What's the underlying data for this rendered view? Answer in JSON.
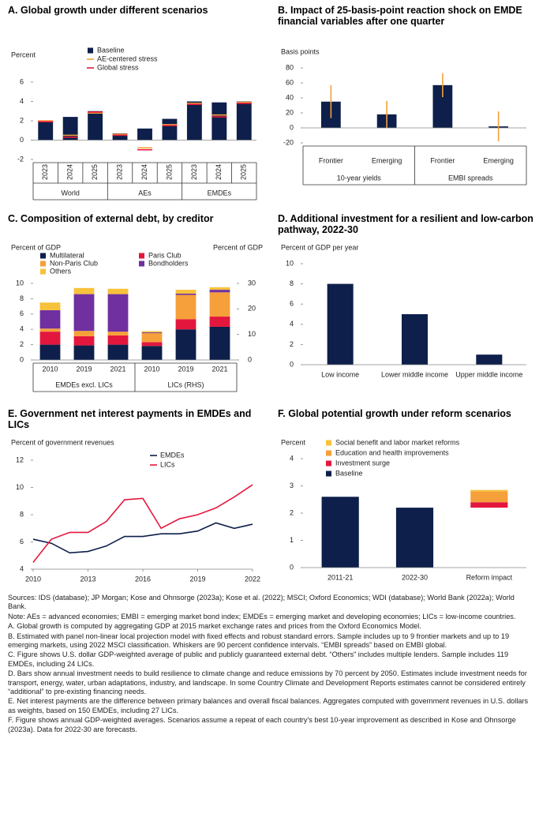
{
  "chart_data": [
    {
      "type": "bar",
      "title": "A. Global growth under different scenarios",
      "y_label": "Percent",
      "groups": [
        {
          "name": "World",
          "categories": [
            "2023",
            "2024",
            "2025"
          ]
        },
        {
          "name": "AEs",
          "categories": [
            "2023",
            "2024",
            "2025"
          ]
        },
        {
          "name": "EMDEs",
          "categories": [
            "2023",
            "2024",
            "2025"
          ]
        }
      ],
      "series": [
        {
          "name": "Baseline",
          "mark": "bar",
          "color": "#0d1f4a",
          "values": [
            2.0,
            2.4,
            3.0,
            0.7,
            1.2,
            2.2,
            4.0,
            3.9,
            4.0
          ]
        },
        {
          "name": "AE-centered stress",
          "mark": "dash",
          "color": "#f5a03a",
          "values": [
            2.0,
            0.5,
            2.8,
            0.6,
            -0.8,
            1.6,
            3.8,
            2.6,
            3.9
          ]
        },
        {
          "name": "Global stress",
          "mark": "dash",
          "color": "#e3173e",
          "values": [
            1.9,
            0.3,
            2.9,
            0.5,
            -1.0,
            1.5,
            3.7,
            2.4,
            3.8
          ]
        }
      ],
      "ylim": [
        -2,
        6
      ],
      "yticks": [
        -2,
        0,
        2,
        4,
        6
      ],
      "legend": "top"
    },
    {
      "type": "bar",
      "title": "B. Impact of 25-basis-point reaction shock on EMDE financial variables after one quarter",
      "y_label": "Basis points",
      "groups": [
        {
          "name": "10-year yields",
          "categories": [
            "Frontier",
            "Emerging"
          ]
        },
        {
          "name": "EMBI spreads",
          "categories": [
            "Frontier",
            "Emerging"
          ]
        }
      ],
      "values": [
        35,
        18,
        57,
        2
      ],
      "errors": [
        22,
        18,
        16,
        20
      ],
      "color": "#0d1f4a",
      "error_color": "#f5a03a",
      "ylim": [
        -20,
        80
      ],
      "yticks": [
        -20,
        0,
        20,
        40,
        60,
        80
      ]
    },
    {
      "type": "stacked_bar",
      "title": "C. Composition of external debt, by creditor",
      "y_label": "Percent of GDP",
      "y2_label": "Percent of GDP",
      "groups": [
        {
          "name": "EMDEs excl. LICs",
          "categories": [
            "2010",
            "2019",
            "2021"
          ]
        },
        {
          "name": "LICs (RHS)",
          "axis": "y2",
          "categories": [
            "2010",
            "2019",
            "2021"
          ]
        }
      ],
      "series": [
        {
          "name": "Multilateral",
          "color": "#0d1f4a",
          "values": [
            2.0,
            1.9,
            2.0,
            5.5,
            12,
            13
          ]
        },
        {
          "name": "Paris Club",
          "color": "#e3173e",
          "values": [
            1.7,
            1.2,
            1.2,
            1.5,
            4,
            4
          ]
        },
        {
          "name": "Non-Paris Club",
          "color": "#f5a03a",
          "values": [
            0.4,
            0.7,
            0.5,
            3.5,
            9.5,
            9.5
          ]
        },
        {
          "name": "Bondholders",
          "color": "#7030a0",
          "values": [
            2.4,
            4.8,
            4.9,
            0.3,
            0.5,
            1.0
          ]
        },
        {
          "name": "Others",
          "color": "#f7c23b",
          "values": [
            1.0,
            0.8,
            0.7,
            0.5,
            1.5,
            1.0
          ]
        }
      ],
      "ylim": [
        0,
        10
      ],
      "yticks": [
        0,
        2,
        4,
        6,
        8,
        10
      ],
      "y2lim": [
        0,
        30
      ],
      "y2ticks": [
        0,
        10,
        20,
        30
      ],
      "legend": "top"
    },
    {
      "type": "bar",
      "title": "D. Additional investment for a resilient and low-carbon pathway, 2022-30",
      "y_label": "Percent of GDP per year",
      "categories": [
        "Low income",
        "Lower middle income",
        "Upper middle income"
      ],
      "values": [
        8,
        5,
        1
      ],
      "color": "#0d1f4a",
      "ylim": [
        0,
        10
      ],
      "yticks": [
        0,
        2,
        4,
        6,
        8,
        10
      ]
    },
    {
      "type": "line",
      "title": "E. Government net interest payments in EMDEs and LICs",
      "y_label": "Percent of government revenues",
      "x": [
        2010,
        2011,
        2012,
        2013,
        2014,
        2015,
        2016,
        2017,
        2018,
        2019,
        2020,
        2021,
        2022
      ],
      "series": [
        {
          "name": "EMDEs",
          "color": "#0d1f4a",
          "values": [
            6.2,
            5.9,
            5.2,
            5.3,
            5.7,
            6.4,
            6.4,
            6.6,
            6.6,
            6.8,
            7.4,
            7.0,
            7.3
          ]
        },
        {
          "name": "LICs",
          "color": "#e3173e",
          "values": [
            4.5,
            6.2,
            6.7,
            6.7,
            7.5,
            9.1,
            9.2,
            7.0,
            7.7,
            8.0,
            8.5,
            9.3,
            10.2
          ]
        }
      ],
      "xlim": [
        2010,
        2022
      ],
      "xticks": [
        2010,
        2013,
        2016,
        2019,
        2022
      ],
      "ylim": [
        4,
        12
      ],
      "yticks": [
        4,
        6,
        8,
        10,
        12
      ],
      "legend": "top"
    },
    {
      "type": "stacked_bar",
      "title": "F. Global potential growth under reform scenarios",
      "y_label": "Percent",
      "categories": [
        "2011-21",
        "2022-30",
        "Reform impact"
      ],
      "floating": [
        false,
        false,
        true
      ],
      "series": [
        {
          "name": "Baseline",
          "color": "#0d1f4a",
          "values": [
            2.6,
            2.2,
            2.2
          ]
        },
        {
          "name": "Investment surge",
          "color": "#e3173e",
          "values": [
            0,
            0,
            0.2
          ]
        },
        {
          "name": "Education and health improvements",
          "color": "#f5a03a",
          "values": [
            0,
            0,
            0.4
          ]
        },
        {
          "name": "Social benefit and labor market reforms",
          "color": "#f7c23b",
          "values": [
            0,
            0,
            0.05
          ]
        }
      ],
      "ylim": [
        0,
        4
      ],
      "yticks": [
        0,
        1,
        2,
        3,
        4
      ],
      "legend": "top",
      "legend_reversed": true
    }
  ],
  "notes": [
    "Sources: IDS (database); JP Morgan; Kose and Ohnsorge (2023a); Kose et al. (2022); MSCI; Oxford Economics; WDI (database); World Bank (2022a); World Bank.",
    "Note: AEs = advanced economies; EMBI = emerging market bond index; EMDEs = emerging market and developing economies; LICs = low-income countries.",
    "A. Global growth is computed by aggregating GDP at 2015 market exchange rates and prices from the Oxford Economics Model.",
    "B. Estimated with panel non-linear local projection model with fixed effects and robust standard errors. Sample includes up to 9 frontier markets and up to 19 emerging markets, using 2022 MSCI classification. Whiskers are 90 percent confidence intervals. “EMBI spreads” based on EMBI global.",
    "C. Figure shows U.S. dollar GDP-weighted average of public and publicly guaranteed external debt. “Others” includes multiple lenders. Sample includes 119 EMDEs, including 24 LICs.",
    "D. Bars show annual investment needs to build resilience to climate change and reduce emissions by 70 percent by 2050. Estimates include investment needs for transport, energy, water, urban adaptations, industry, and landscape. In some Country Climate and Development Reports estimates cannot be considered entirely “additional” to pre-existing financing needs.",
    "E. Net interest payments are the difference between primary balances and overall fiscal balances. Aggregates computed with government revenues in U.S. dollars as weights, based on 150 EMDEs, including 27 LICs.",
    "F. Figure shows annual GDP-weighted averages. Scenarios assume a repeat of each country's best 10-year improvement as described in Kose and Ohnsorge (2023a). Data for 2022-30 are forecasts."
  ]
}
